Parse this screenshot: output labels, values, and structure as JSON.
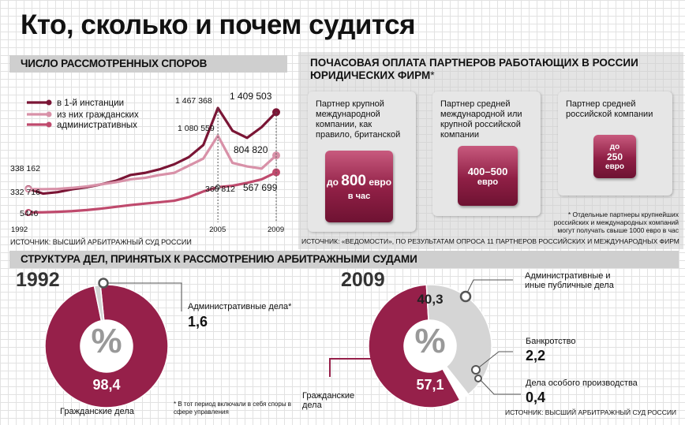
{
  "title": "Кто, сколько и почем судится",
  "disputes": {
    "header": "Число рассмотренных споров",
    "source": "Источник: Высший арбитражный суд России",
    "legend": [
      "в 1-й инстанции",
      "из них гражданских",
      "административных"
    ],
    "value_labels": {
      "first_1992": "338 162",
      "civil_1992": "332 716",
      "admin_1992": "5446",
      "first_2005": "1 467 368",
      "civil_2005": "1 080 559",
      "admin_2005": "360 812",
      "first_2009": "1 409 503",
      "civil_2009": "804 820",
      "admin_2009": "567 699"
    }
  },
  "rates": {
    "header": "Почасовая оплата партнеров работающих в России юридических фирм",
    "star": "*",
    "cards": [
      {
        "text": "Партнер крупной международной компании, как правило, британской",
        "price": "до 800 евро",
        "price_amount": "800",
        "price_prefix": "до",
        "price_unit": "евро",
        "price_suffix": "в час"
      },
      {
        "text": "Партнер средней международной или крупной российской компании",
        "price": "400–500 евро",
        "price_amount": "400–500",
        "price_unit": "евро"
      },
      {
        "text": "Партнер средней российской компании",
        "price": "до 250 евро",
        "price_prefix": "до",
        "price_amount": "250",
        "price_unit": "евро"
      }
    ],
    "footnote": "* Отдельные партнеры крупнейших российских и международных компаний могут получать свыше 1000 евро в час",
    "source": "Источник: «Ведомости», по результатам опроса 11 партнеров российских и международных фирм"
  },
  "structure": {
    "header": "Структура дел, принятых к рассмотрению арбитражными судами",
    "year_1992": "1992",
    "year_2009": "2009",
    "percent_sign": "%",
    "labels_1992": {
      "civil_label": "Гражданские дела",
      "civil_value": "98,4",
      "admin_label": "Административные дела*",
      "admin_value": "1,6"
    },
    "footnote_1992": "* В тот период включали в себя споры в сфере управления",
    "labels_2009": {
      "civil_label": "Гражданские дела",
      "civil_value": "57,1",
      "admin_label": "Административные и иные публичные дела",
      "admin_value": "40,3",
      "bankruptcy_label": "Банкротство",
      "bankruptcy_value": "2,2",
      "special_label": "Дела особого производства",
      "special_value": "0,4"
    },
    "source": "Источник: Высший арбитражный суд России"
  },
  "colors": {
    "first": "#7a1535",
    "civil": "#d891a8",
    "admin": "#bf4a6d",
    "donut_dark": "#96204a",
    "donut_light": "#d5d5d5",
    "donut_white": "#ffffff"
  },
  "chart_data": [
    {
      "type": "line",
      "title": "Число рассмотренных споров",
      "x": [
        1992,
        1993,
        1994,
        1995,
        1996,
        1997,
        1998,
        1999,
        2000,
        2001,
        2002,
        2003,
        2004,
        2005,
        2006,
        2007,
        2008,
        2009
      ],
      "x_tick_labels": [
        "1992",
        "2005",
        "2009"
      ],
      "ylim": [
        0,
        1600000
      ],
      "series": [
        {
          "name": "в 1-й инстанции",
          "values": [
            338162,
            270000,
            290000,
            330000,
            360000,
            400000,
            450000,
            530000,
            560000,
            610000,
            680000,
            780000,
            950000,
            1467368,
            1150000,
            1050000,
            1200000,
            1409503
          ]
        },
        {
          "name": "из них гражданских",
          "values": [
            332716,
            332000,
            335000,
            350000,
            370000,
            400000,
            430000,
            470000,
            490000,
            530000,
            560000,
            660000,
            760000,
            1080559,
            700000,
            650000,
            620000,
            804820
          ]
        },
        {
          "name": "административных",
          "values": [
            5446,
            8000,
            15000,
            25000,
            40000,
            60000,
            85000,
            110000,
            130000,
            150000,
            170000,
            220000,
            300000,
            360812,
            380000,
            420000,
            470000,
            567699
          ]
        }
      ]
    },
    {
      "type": "pie",
      "title": "1992",
      "categories": [
        "Гражданские дела",
        "Административные дела*"
      ],
      "values": [
        98.4,
        1.6
      ],
      "unit": "%"
    },
    {
      "type": "pie",
      "title": "2009",
      "categories": [
        "Гражданские дела",
        "Административные и иные публичные дела",
        "Банкротство",
        "Дела особого производства"
      ],
      "values": [
        57.1,
        40.3,
        2.2,
        0.4
      ],
      "unit": "%"
    }
  ]
}
